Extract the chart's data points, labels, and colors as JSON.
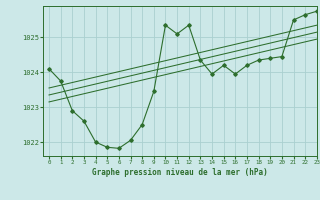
{
  "title": "Graphe pression niveau de la mer (hPa)",
  "bg_color": "#cce8e8",
  "grid_color": "#aad0d0",
  "line_color": "#2d6e2d",
  "xlim": [
    -0.5,
    23
  ],
  "ylim": [
    1021.6,
    1025.9
  ],
  "yticks": [
    1022,
    1023,
    1024,
    1025
  ],
  "xticks": [
    0,
    1,
    2,
    3,
    4,
    5,
    6,
    7,
    8,
    9,
    10,
    11,
    12,
    13,
    14,
    15,
    16,
    17,
    18,
    19,
    20,
    21,
    22,
    23
  ],
  "main_series": [
    [
      0,
      1024.1
    ],
    [
      1,
      1023.75
    ],
    [
      2,
      1022.9
    ],
    [
      3,
      1022.6
    ],
    [
      4,
      1022.0
    ],
    [
      5,
      1021.85
    ],
    [
      6,
      1021.82
    ],
    [
      7,
      1022.05
    ],
    [
      8,
      1022.5
    ],
    [
      9,
      1023.45
    ],
    [
      10,
      1025.35
    ],
    [
      11,
      1025.1
    ],
    [
      12,
      1025.35
    ],
    [
      13,
      1024.35
    ],
    [
      14,
      1023.95
    ],
    [
      15,
      1024.2
    ],
    [
      16,
      1023.95
    ],
    [
      17,
      1024.2
    ],
    [
      18,
      1024.35
    ],
    [
      19,
      1024.4
    ],
    [
      20,
      1024.45
    ],
    [
      21,
      1025.5
    ],
    [
      22,
      1025.65
    ],
    [
      23,
      1025.75
    ]
  ],
  "trend_lines": [
    [
      [
        0,
        1023.55
      ],
      [
        23,
        1025.35
      ]
    ],
    [
      [
        0,
        1023.35
      ],
      [
        23,
        1025.15
      ]
    ],
    [
      [
        0,
        1023.15
      ],
      [
        23,
        1024.95
      ]
    ]
  ]
}
